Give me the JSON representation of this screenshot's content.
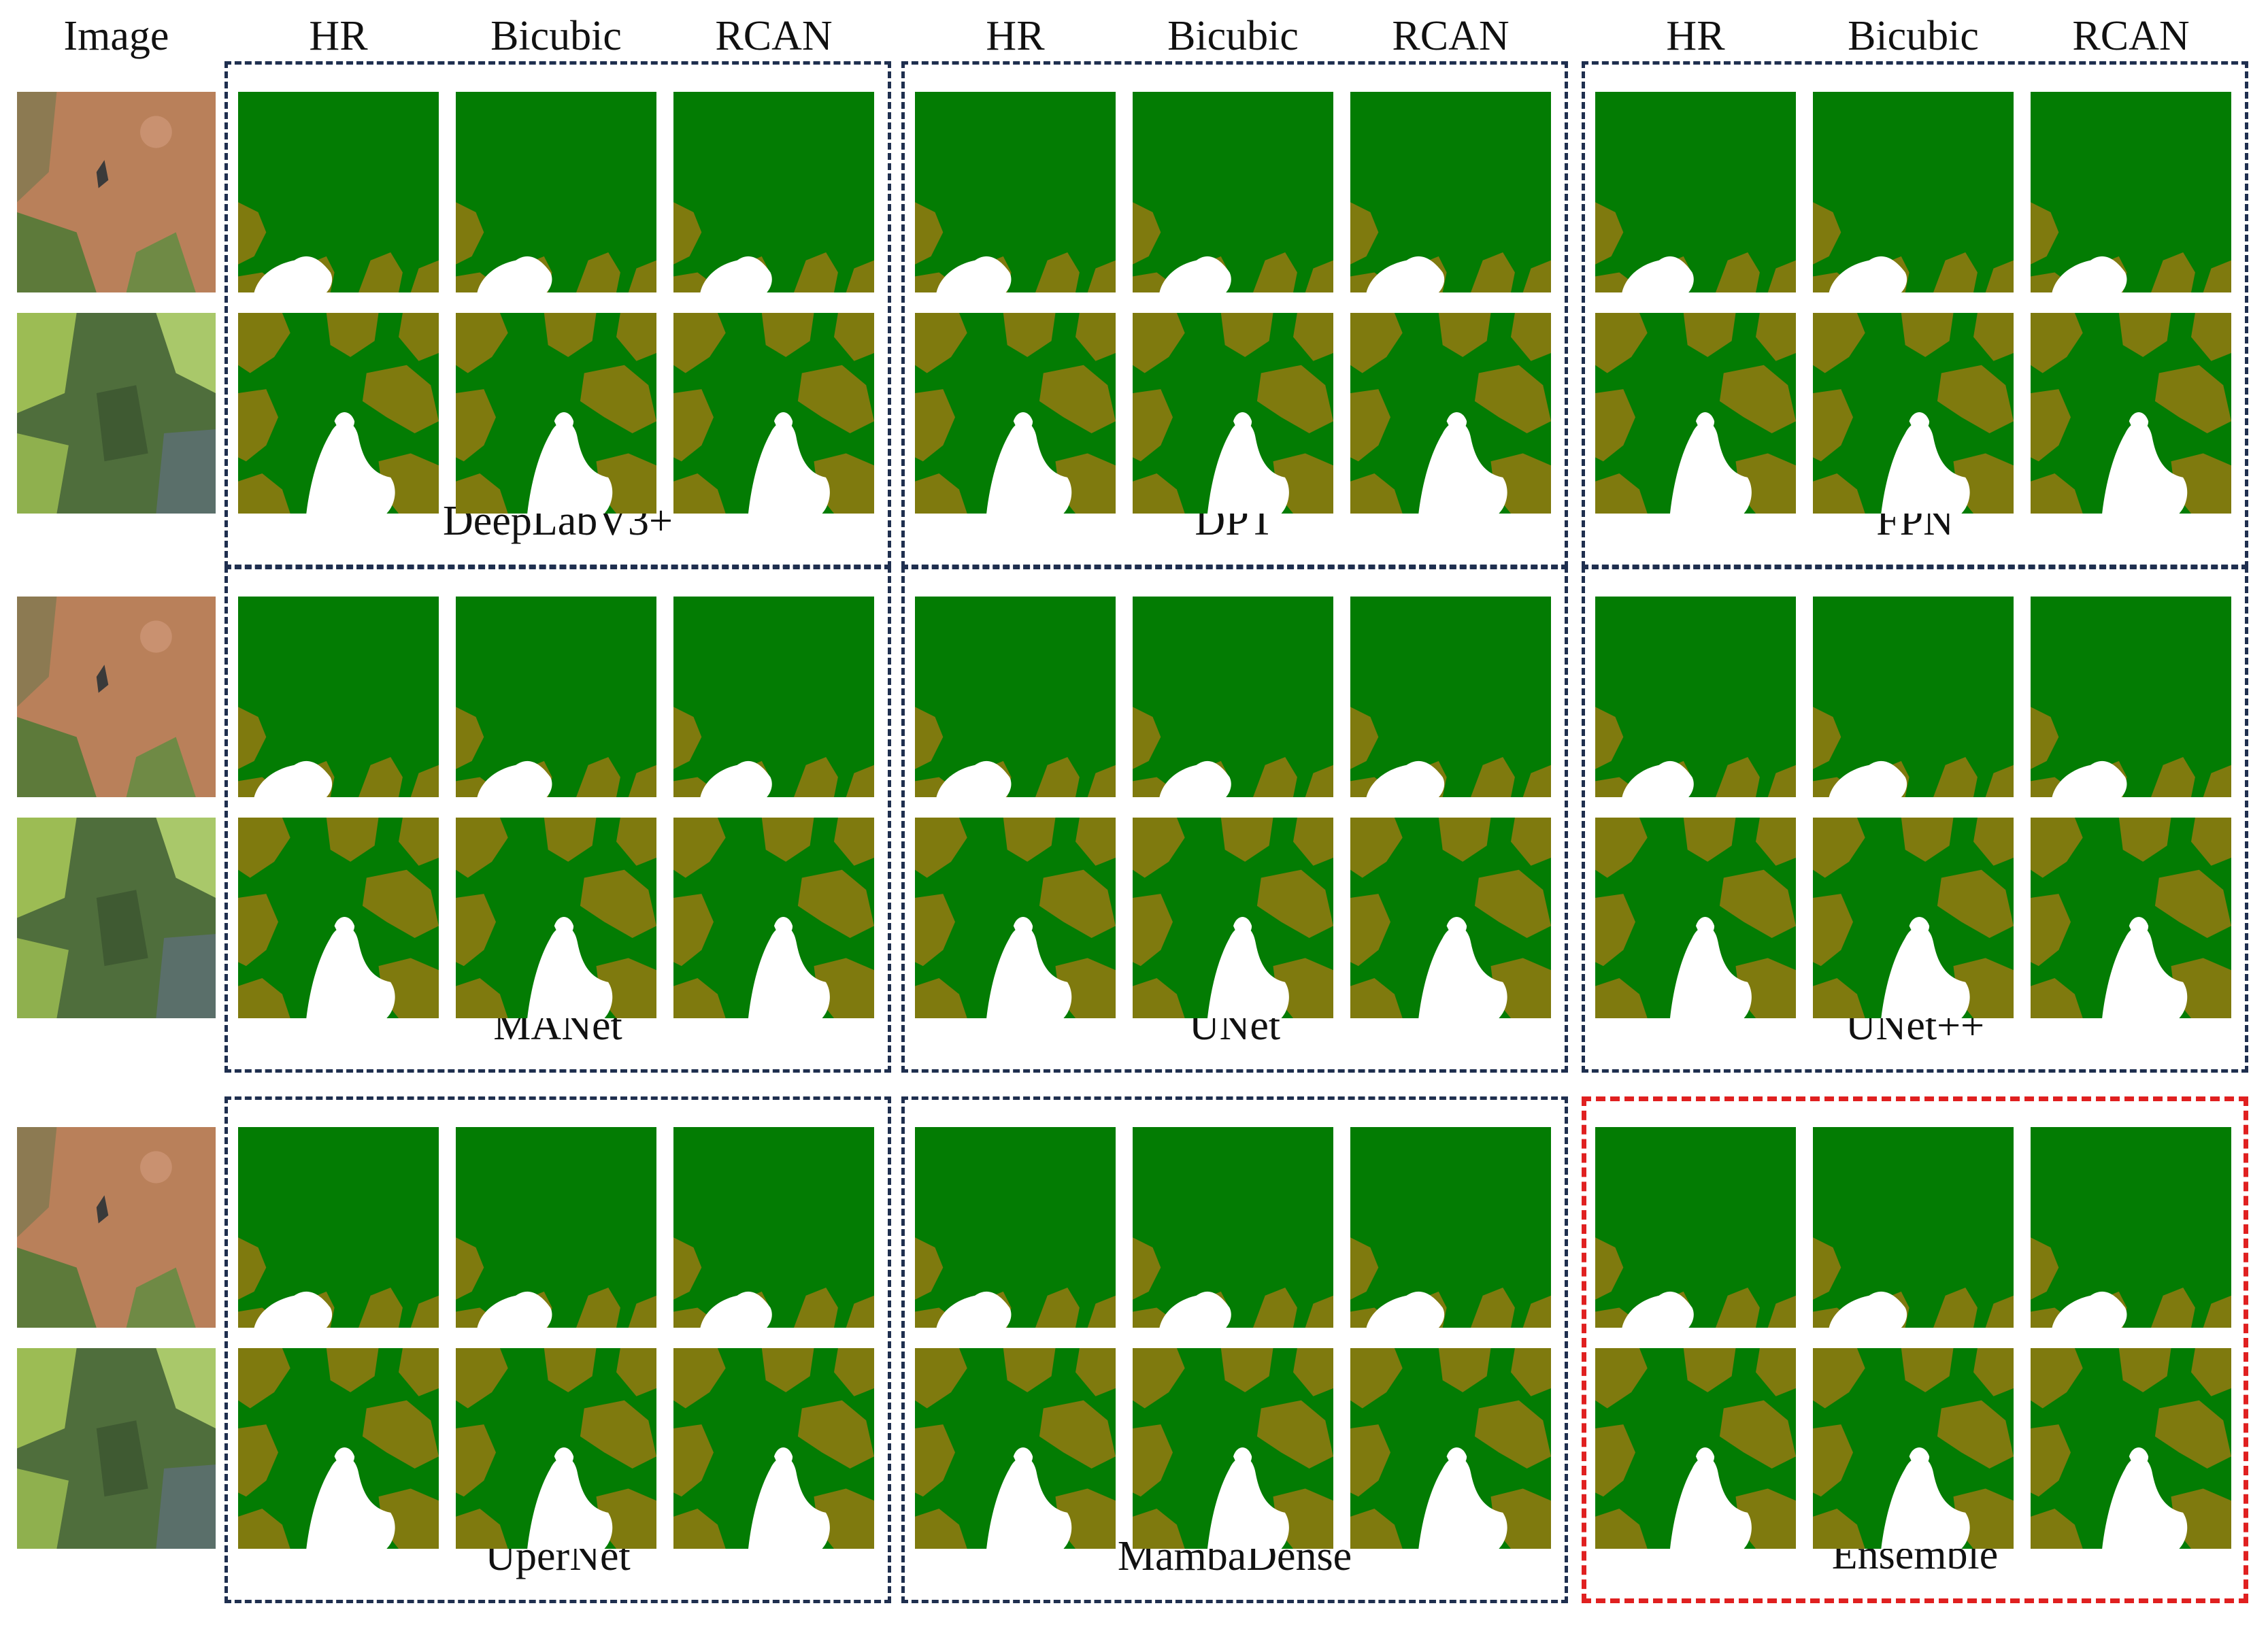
{
  "header": {
    "image_label": "Image",
    "columns": [
      "HR",
      "Bicubic",
      "RCAN"
    ]
  },
  "groups": [
    {
      "name": "DeepLabV3+",
      "highlight": false
    },
    {
      "name": "DPT",
      "highlight": false
    },
    {
      "name": "FPN",
      "highlight": false
    },
    {
      "name": "MANet",
      "highlight": false
    },
    {
      "name": "UNet",
      "highlight": false
    },
    {
      "name": "UNet++",
      "highlight": false
    },
    {
      "name": "UperNet",
      "highlight": false
    },
    {
      "name": "MambaDense",
      "highlight": false
    },
    {
      "name": "Ensemble",
      "highlight": true
    }
  ],
  "colors": {
    "crop": "#037c03",
    "weed": "#7f7a0e",
    "background": "#ffffff",
    "box_border": "#1f2f4f",
    "highlight_border": "#e02020"
  }
}
